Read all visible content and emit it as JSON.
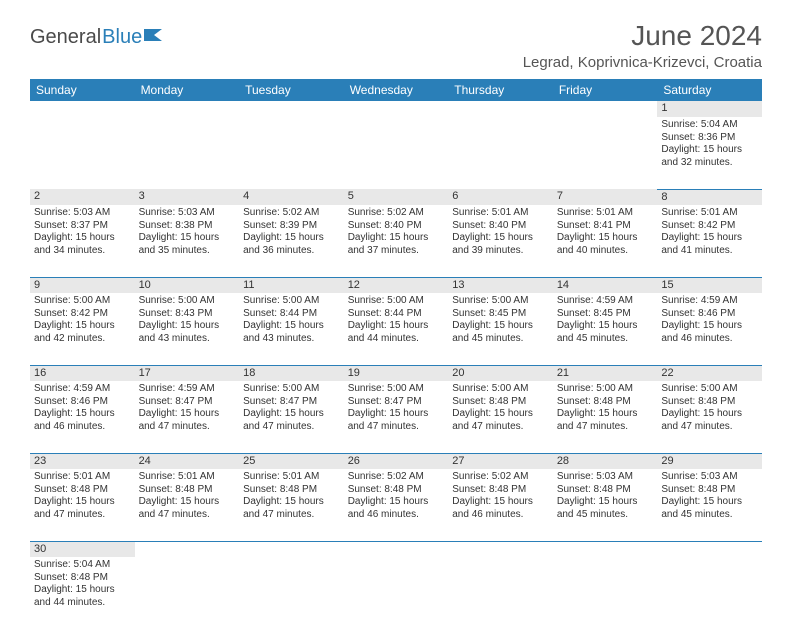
{
  "brand": {
    "part1": "General",
    "part2": "Blue"
  },
  "title": "June 2024",
  "location": "Legrad, Koprivnica-Krizevci, Croatia",
  "colors": {
    "header_bg": "#2a7fb8",
    "header_text": "#ffffff",
    "daynum_bg": "#e8e8e8",
    "cell_border": "#2a7fb8",
    "text": "#333333",
    "title_text": "#555555"
  },
  "fonts": {
    "title_size_pt": 28,
    "location_size_pt": 15,
    "header_size_pt": 12,
    "daynum_size_pt": 11,
    "cell_size_pt": 10
  },
  "day_headers": [
    "Sunday",
    "Monday",
    "Tuesday",
    "Wednesday",
    "Thursday",
    "Friday",
    "Saturday"
  ],
  "weeks": [
    [
      null,
      null,
      null,
      null,
      null,
      null,
      {
        "n": "1",
        "sr": "5:04 AM",
        "ss": "8:36 PM",
        "dl": "15 hours and 32 minutes."
      }
    ],
    [
      {
        "n": "2",
        "sr": "5:03 AM",
        "ss": "8:37 PM",
        "dl": "15 hours and 34 minutes."
      },
      {
        "n": "3",
        "sr": "5:03 AM",
        "ss": "8:38 PM",
        "dl": "15 hours and 35 minutes."
      },
      {
        "n": "4",
        "sr": "5:02 AM",
        "ss": "8:39 PM",
        "dl": "15 hours and 36 minutes."
      },
      {
        "n": "5",
        "sr": "5:02 AM",
        "ss": "8:40 PM",
        "dl": "15 hours and 37 minutes."
      },
      {
        "n": "6",
        "sr": "5:01 AM",
        "ss": "8:40 PM",
        "dl": "15 hours and 39 minutes."
      },
      {
        "n": "7",
        "sr": "5:01 AM",
        "ss": "8:41 PM",
        "dl": "15 hours and 40 minutes."
      },
      {
        "n": "8",
        "sr": "5:01 AM",
        "ss": "8:42 PM",
        "dl": "15 hours and 41 minutes."
      }
    ],
    [
      {
        "n": "9",
        "sr": "5:00 AM",
        "ss": "8:42 PM",
        "dl": "15 hours and 42 minutes."
      },
      {
        "n": "10",
        "sr": "5:00 AM",
        "ss": "8:43 PM",
        "dl": "15 hours and 43 minutes."
      },
      {
        "n": "11",
        "sr": "5:00 AM",
        "ss": "8:44 PM",
        "dl": "15 hours and 43 minutes."
      },
      {
        "n": "12",
        "sr": "5:00 AM",
        "ss": "8:44 PM",
        "dl": "15 hours and 44 minutes."
      },
      {
        "n": "13",
        "sr": "5:00 AM",
        "ss": "8:45 PM",
        "dl": "15 hours and 45 minutes."
      },
      {
        "n": "14",
        "sr": "4:59 AM",
        "ss": "8:45 PM",
        "dl": "15 hours and 45 minutes."
      },
      {
        "n": "15",
        "sr": "4:59 AM",
        "ss": "8:46 PM",
        "dl": "15 hours and 46 minutes."
      }
    ],
    [
      {
        "n": "16",
        "sr": "4:59 AM",
        "ss": "8:46 PM",
        "dl": "15 hours and 46 minutes."
      },
      {
        "n": "17",
        "sr": "4:59 AM",
        "ss": "8:47 PM",
        "dl": "15 hours and 47 minutes."
      },
      {
        "n": "18",
        "sr": "5:00 AM",
        "ss": "8:47 PM",
        "dl": "15 hours and 47 minutes."
      },
      {
        "n": "19",
        "sr": "5:00 AM",
        "ss": "8:47 PM",
        "dl": "15 hours and 47 minutes."
      },
      {
        "n": "20",
        "sr": "5:00 AM",
        "ss": "8:48 PM",
        "dl": "15 hours and 47 minutes."
      },
      {
        "n": "21",
        "sr": "5:00 AM",
        "ss": "8:48 PM",
        "dl": "15 hours and 47 minutes."
      },
      {
        "n": "22",
        "sr": "5:00 AM",
        "ss": "8:48 PM",
        "dl": "15 hours and 47 minutes."
      }
    ],
    [
      {
        "n": "23",
        "sr": "5:01 AM",
        "ss": "8:48 PM",
        "dl": "15 hours and 47 minutes."
      },
      {
        "n": "24",
        "sr": "5:01 AM",
        "ss": "8:48 PM",
        "dl": "15 hours and 47 minutes."
      },
      {
        "n": "25",
        "sr": "5:01 AM",
        "ss": "8:48 PM",
        "dl": "15 hours and 47 minutes."
      },
      {
        "n": "26",
        "sr": "5:02 AM",
        "ss": "8:48 PM",
        "dl": "15 hours and 46 minutes."
      },
      {
        "n": "27",
        "sr": "5:02 AM",
        "ss": "8:48 PM",
        "dl": "15 hours and 46 minutes."
      },
      {
        "n": "28",
        "sr": "5:03 AM",
        "ss": "8:48 PM",
        "dl": "15 hours and 45 minutes."
      },
      {
        "n": "29",
        "sr": "5:03 AM",
        "ss": "8:48 PM",
        "dl": "15 hours and 45 minutes."
      }
    ],
    [
      {
        "n": "30",
        "sr": "5:04 AM",
        "ss": "8:48 PM",
        "dl": "15 hours and 44 minutes."
      },
      null,
      null,
      null,
      null,
      null,
      null
    ]
  ],
  "labels": {
    "sunrise": "Sunrise:",
    "sunset": "Sunset:",
    "daylight": "Daylight:"
  }
}
